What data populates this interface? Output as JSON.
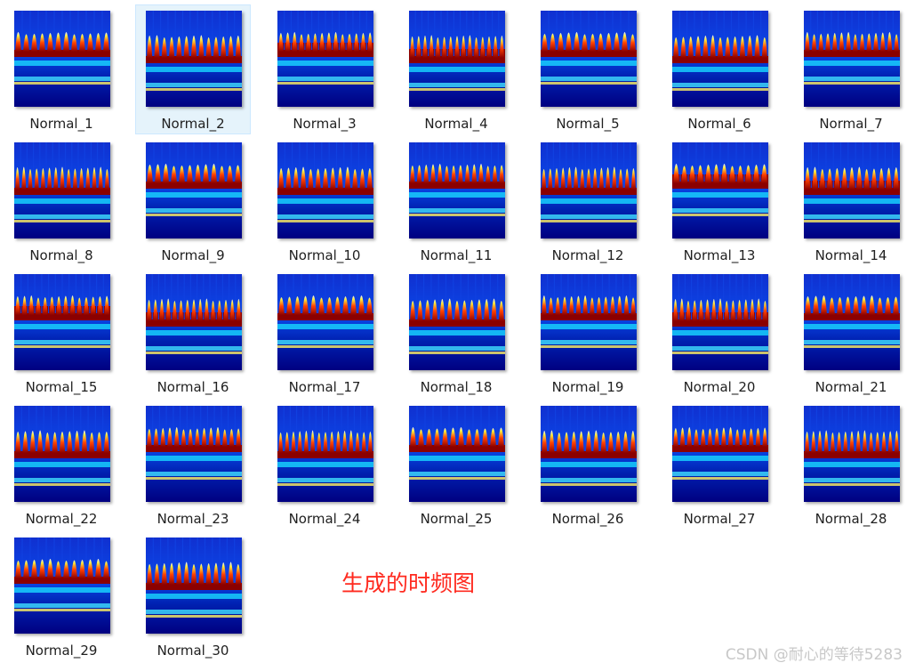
{
  "files": [
    {
      "name": "Normal_1",
      "selected": false
    },
    {
      "name": "Normal_2",
      "selected": true
    },
    {
      "name": "Normal_3",
      "selected": false
    },
    {
      "name": "Normal_4",
      "selected": false
    },
    {
      "name": "Normal_5",
      "selected": false
    },
    {
      "name": "Normal_6",
      "selected": false
    },
    {
      "name": "Normal_7",
      "selected": false
    },
    {
      "name": "Normal_8",
      "selected": false
    },
    {
      "name": "Normal_9",
      "selected": false
    },
    {
      "name": "Normal_10",
      "selected": false
    },
    {
      "name": "Normal_11",
      "selected": false
    },
    {
      "name": "Normal_12",
      "selected": false
    },
    {
      "name": "Normal_13",
      "selected": false
    },
    {
      "name": "Normal_14",
      "selected": false
    },
    {
      "name": "Normal_15",
      "selected": false
    },
    {
      "name": "Normal_16",
      "selected": false
    },
    {
      "name": "Normal_17",
      "selected": false
    },
    {
      "name": "Normal_18",
      "selected": false
    },
    {
      "name": "Normal_19",
      "selected": false
    },
    {
      "name": "Normal_20",
      "selected": false
    },
    {
      "name": "Normal_21",
      "selected": false
    },
    {
      "name": "Normal_22",
      "selected": false
    },
    {
      "name": "Normal_23",
      "selected": false
    },
    {
      "name": "Normal_24",
      "selected": false
    },
    {
      "name": "Normal_25",
      "selected": false
    },
    {
      "name": "Normal_26",
      "selected": false
    },
    {
      "name": "Normal_27",
      "selected": false
    },
    {
      "name": "Normal_28",
      "selected": false
    },
    {
      "name": "Normal_29",
      "selected": false
    },
    {
      "name": "Normal_30",
      "selected": false
    }
  ],
  "caption": "生成的时频图",
  "watermark": "CSDN @耐心的等待5283",
  "colors": {
    "caption": "#ff2a1f",
    "selection_bg": "#e5f3fb",
    "scalogram_dark": "#00008f",
    "scalogram_hot": "#8b0000"
  }
}
